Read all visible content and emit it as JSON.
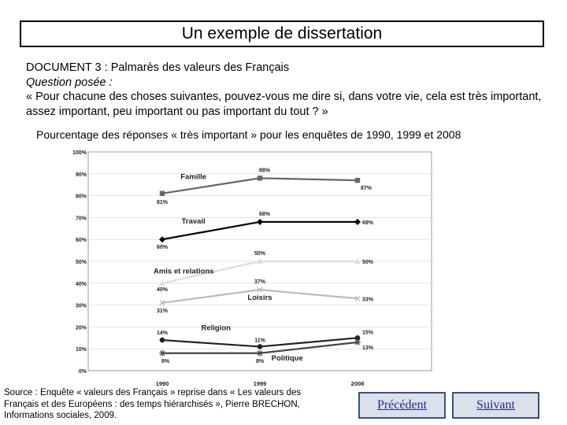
{
  "slide": {
    "title": "Un exemple de dissertation"
  },
  "document": {
    "heading": "DOCUMENT 3 : Palmarès des valeurs des Français",
    "question_label": "Question posée :",
    "question_text": "« Pour chacune des choses suivantes, pouvez-vous me dire si, dans votre vie, cela est très important, assez important, peu important ou pas important du tout ? »"
  },
  "caption": "Pourcentage des réponses « très important » pour les enquêtes de 1990, 1999 et 2008",
  "source": "Source : Enquête « valeurs des Français » reprise dans « Les valeurs des Français et des Européens : des temps hiérarchisés », Pierre BRECHON, Informations sociales, 2009.",
  "nav": {
    "previous": "Précédent",
    "next": "Suivant"
  },
  "chart_data": {
    "type": "line",
    "x": [
      "1990",
      "1999",
      "2008"
    ],
    "ylim": [
      0,
      100
    ],
    "y_ticks": [
      "0%",
      "10%",
      "20%",
      "30%",
      "40%",
      "50%",
      "60%",
      "70%",
      "80%",
      "90%",
      "100%"
    ],
    "grid": true,
    "series": [
      {
        "name": "Famille",
        "values": [
          81,
          88,
          87
        ],
        "labels": [
          "81%",
          "88%",
          "87%"
        ],
        "color": "#666666",
        "marker": "square"
      },
      {
        "name": "Travail",
        "values": [
          60,
          68,
          68
        ],
        "labels": [
          "60%",
          "68%",
          "68%"
        ],
        "color": "#000000",
        "marker": "diamond"
      },
      {
        "name": "Amis et relations",
        "values": [
          40,
          50,
          50
        ],
        "labels": [
          "40%",
          "50%",
          "50%"
        ],
        "color": "#dddddd",
        "marker": "triangle"
      },
      {
        "name": "Loisirs",
        "values": [
          31,
          37,
          33
        ],
        "labels": [
          "31%",
          "37%",
          "33%"
        ],
        "color": "#bbbbbb",
        "marker": "x"
      },
      {
        "name": "Religion",
        "values": [
          14,
          11,
          15
        ],
        "labels": [
          "14%",
          "11%",
          "15%"
        ],
        "color": "#222222",
        "marker": "circle"
      },
      {
        "name": "Politique",
        "values": [
          8,
          8,
          13
        ],
        "labels": [
          "8%",
          "8%",
          "13%"
        ],
        "color": "#444444",
        "marker": "star"
      }
    ]
  }
}
